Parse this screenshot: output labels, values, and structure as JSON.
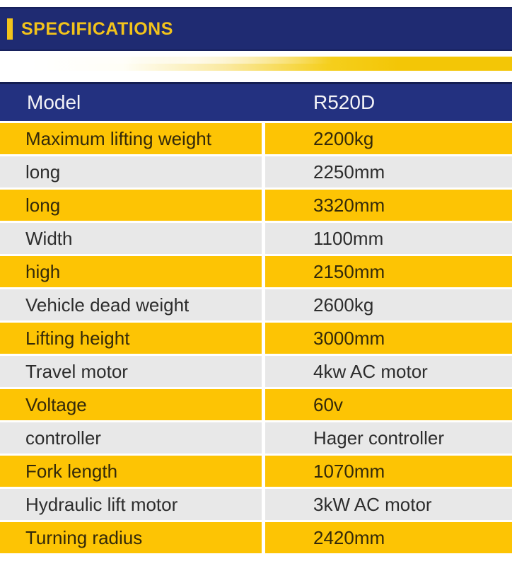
{
  "header": {
    "title": "SPECIFICATIONS"
  },
  "colors": {
    "band_navy": "#1f2b72",
    "table_header_navy": "#233180",
    "row_yellow": "#fdc404",
    "row_gray": "#e8e8e8",
    "accent_yellow": "#f2c31b",
    "header_text": "#f3f3f7",
    "yellow_row_text": "#33290a",
    "gray_row_text": "#2d2d2d"
  },
  "table": {
    "columns": [
      "Model",
      "R520D"
    ],
    "rows": [
      {
        "label": "Maximum lifting weight",
        "value": "2200kg"
      },
      {
        "label": "long",
        "value": "2250mm"
      },
      {
        "label": "long",
        "value": "3320mm"
      },
      {
        "label": "Width",
        "value": "1100mm"
      },
      {
        "label": "high",
        "value": "2150mm"
      },
      {
        "label": "Vehicle dead weight",
        "value": "2600kg"
      },
      {
        "label": "Lifting height",
        "value": "3000mm"
      },
      {
        "label": "Travel motor",
        "value": "4kw AC motor"
      },
      {
        "label": "Voltage",
        "value": "60v"
      },
      {
        "label": "controller",
        "value": "Hager controller"
      },
      {
        "label": "Fork length",
        "value": "1070mm"
      },
      {
        "label": "Hydraulic lift motor",
        "value": "3kW AC motor"
      },
      {
        "label": "Turning radius",
        "value": "2420mm"
      }
    ]
  }
}
